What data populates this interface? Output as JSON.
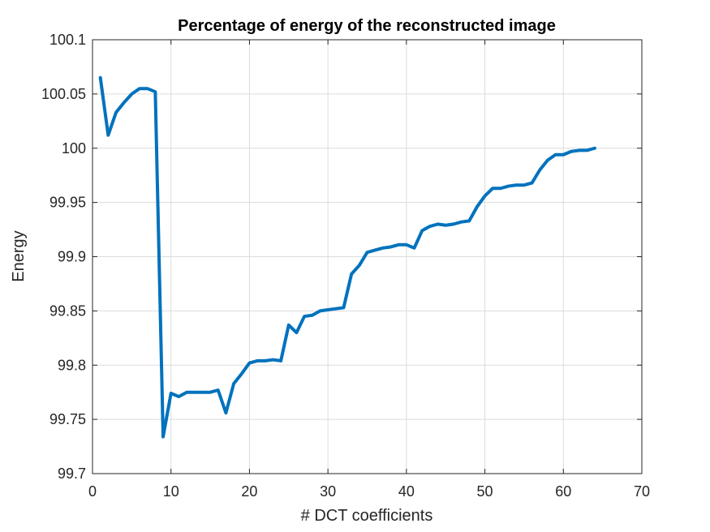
{
  "chart_data": {
    "type": "line",
    "title": "Percentage of energy of the reconstructed image",
    "xlabel": "# DCT coefficients",
    "ylabel": "Energy",
    "xlim": [
      0,
      70
    ],
    "ylim": [
      99.7,
      100.1
    ],
    "xticks": [
      0,
      10,
      20,
      30,
      40,
      50,
      60,
      70
    ],
    "yticks": [
      99.7,
      99.75,
      99.8,
      99.85,
      99.9,
      99.95,
      100,
      100.05,
      100.1
    ],
    "xtick_labels": [
      "0",
      "10",
      "20",
      "30",
      "40",
      "50",
      "60",
      "70"
    ],
    "ytick_labels": [
      "99.7",
      "99.75",
      "99.8",
      "99.85",
      "99.9",
      "99.95",
      "100",
      "100.05",
      "100.1"
    ],
    "grid": true,
    "series": [
      {
        "color": "#0072BD",
        "x": [
          1,
          2,
          3,
          4,
          5,
          6,
          7,
          8,
          9,
          10,
          11,
          12,
          13,
          14,
          15,
          16,
          17,
          18,
          19,
          20,
          21,
          22,
          23,
          24,
          25,
          26,
          27,
          28,
          29,
          30,
          31,
          32,
          33,
          34,
          35,
          36,
          37,
          38,
          39,
          40,
          41,
          42,
          43,
          44,
          45,
          46,
          47,
          48,
          49,
          50,
          51,
          52,
          53,
          54,
          55,
          56,
          57,
          58,
          59,
          60,
          61,
          62,
          63,
          64
        ],
        "y": [
          100.065,
          100.012,
          100.033,
          100.042,
          100.05,
          100.055,
          100.055,
          100.052,
          99.734,
          99.774,
          99.771,
          99.775,
          99.775,
          99.775,
          99.775,
          99.777,
          99.756,
          99.783,
          99.792,
          99.802,
          99.804,
          99.804,
          99.805,
          99.804,
          99.837,
          99.83,
          99.845,
          99.846,
          99.85,
          99.851,
          99.852,
          99.853,
          99.884,
          99.892,
          99.904,
          99.906,
          99.908,
          99.909,
          99.911,
          99.911,
          99.908,
          99.924,
          99.928,
          99.93,
          99.929,
          99.93,
          99.932,
          99.933,
          99.946,
          99.956,
          99.963,
          99.963,
          99.965,
          99.966,
          99.966,
          99.968,
          99.98,
          99.989,
          99.994,
          99.994,
          99.997,
          99.998,
          99.998,
          100.0
        ]
      }
    ]
  }
}
